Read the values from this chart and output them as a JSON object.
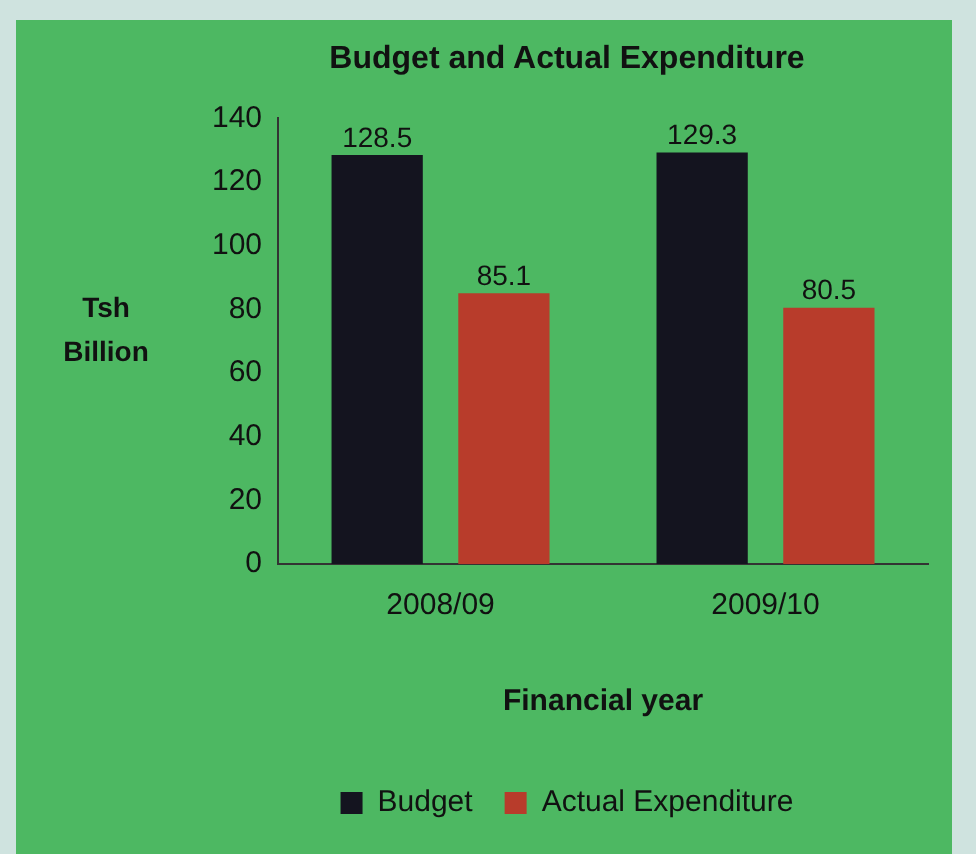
{
  "chart_data": {
    "type": "bar",
    "title": "Budget and Actual Expenditure",
    "xlabel": "Financial year",
    "ylabel": "Tsh Billion",
    "categories": [
      "2008/09",
      "2009/10"
    ],
    "series": [
      {
        "name": "Budget",
        "color": "#14141f",
        "values": [
          128.5,
          129.3
        ]
      },
      {
        "name": "Actual Expenditure",
        "color": "#b83c2b",
        "values": [
          85.1,
          80.5
        ]
      }
    ],
    "ylim": [
      0,
      140
    ],
    "yticks": [
      0,
      20,
      40,
      60,
      80,
      100,
      120,
      140
    ],
    "grid": false,
    "legend": "bottom",
    "data_labels": true
  }
}
